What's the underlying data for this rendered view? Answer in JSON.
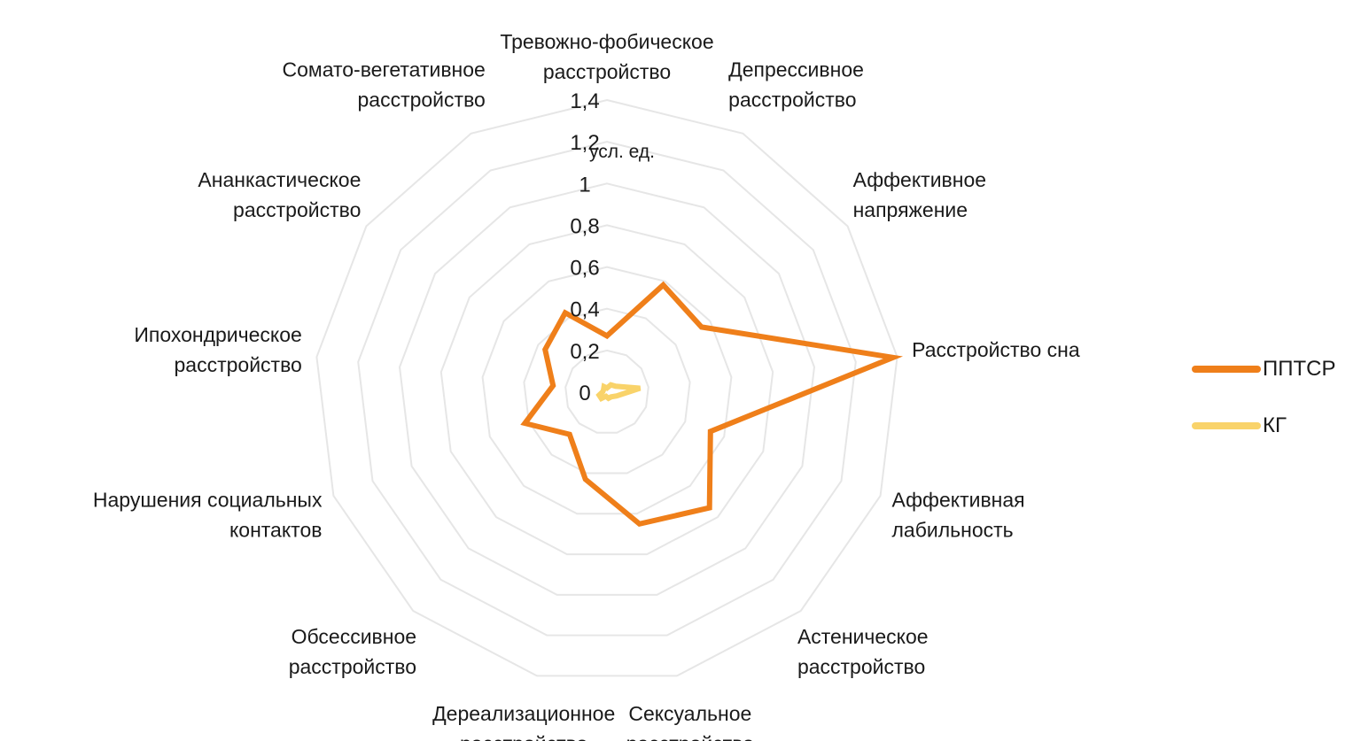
{
  "chart_data": {
    "type": "radar",
    "unit": "усл. ед.",
    "rlim": [
      0,
      1.4
    ],
    "ticks": [
      "0",
      "0,2",
      "0,4",
      "0,6",
      "0,8",
      "1",
      "1,2",
      "1,4"
    ],
    "axes": [
      [
        "Тревожно-фобическое",
        "расстройство"
      ],
      [
        "Депрессивное",
        "расстройство"
      ],
      [
        "Аффективное",
        "напряжение"
      ],
      [
        "Расстройство сна"
      ],
      [
        "Аффективная",
        "лабильность"
      ],
      [
        "Астеническое",
        "расстройство"
      ],
      [
        "Сексуальное",
        "расстройство"
      ],
      [
        "Дереализационное",
        "расстройство"
      ],
      [
        "Обсессивное",
        "расстройство"
      ],
      [
        "Нарушения социальных",
        "контактов"
      ],
      [
        "Ипохондрическое",
        "расстройство"
      ],
      [
        "Ананкастическое",
        "расстройство"
      ],
      [
        "Сомато-вегетативное",
        "расстройство"
      ]
    ],
    "series": [
      {
        "name": "ППТСР",
        "color": "#ef7f1a",
        "values": [
          0.27,
          0.58,
          0.55,
          1.38,
          0.53,
          0.74,
          0.65,
          0.43,
          0.27,
          0.42,
          0.26,
          0.36,
          0.43
        ]
      },
      {
        "name": "КГ",
        "color": "#f9d36a",
        "values": [
          0.02,
          0.04,
          0.05,
          0.16,
          0.05,
          0.03,
          0.03,
          0.02,
          0.04,
          0.04,
          0.02,
          0.02,
          0.03
        ]
      }
    ],
    "grid": true,
    "legend_position": "right"
  }
}
